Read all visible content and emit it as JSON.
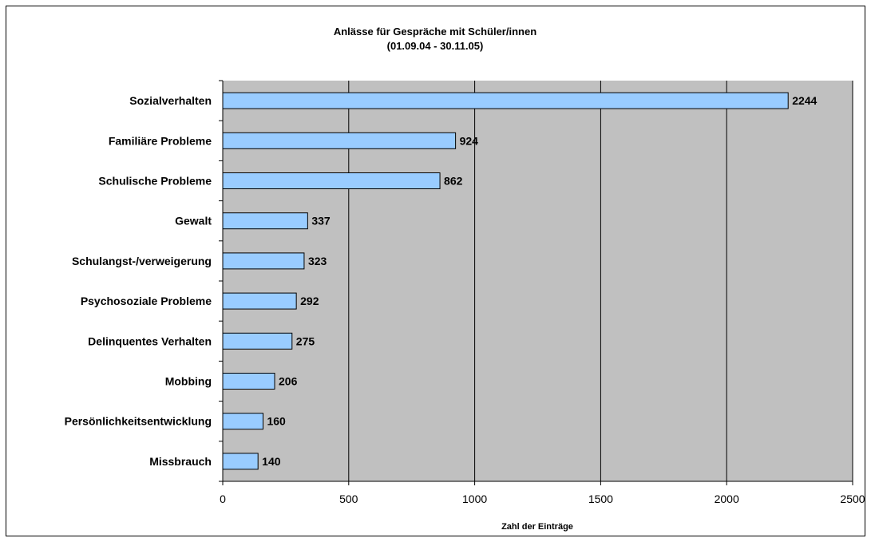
{
  "chart_data": {
    "type": "bar",
    "orientation": "horizontal",
    "title": "Anlässe für Gespräche mit Schüler/innen",
    "subtitle": "(01.09.04 - 30.11.05)",
    "categories": [
      "Sozialverhalten",
      "Familiäre Probleme",
      "Schulische Probleme",
      "Gewalt",
      "Schulangst-/verweigerung",
      "Psychosoziale Probleme",
      "Delinquentes Verhalten",
      "Mobbing",
      "Persönlichkeitsentwicklung",
      "Missbrauch"
    ],
    "values": [
      2244,
      924,
      862,
      337,
      323,
      292,
      275,
      206,
      160,
      140
    ],
    "value_labels": [
      "2244",
      "924",
      "862",
      "337",
      "323",
      "292",
      "275",
      "206",
      "160",
      "140"
    ],
    "xlabel": "Zahl der Einträge",
    "ylabel": "",
    "xlim": [
      0,
      2500
    ],
    "xticks": [
      0,
      500,
      1000,
      1500,
      2000,
      2500
    ],
    "xtick_labels": [
      "0",
      "500",
      "1000",
      "1500",
      "2000",
      "2500"
    ],
    "grid": true,
    "legend": "none",
    "colors": {
      "plot_background": "#c0c0c0",
      "bar_fill": "#99ccff",
      "bar_stroke": "#000000",
      "gridline": "#000000"
    }
  }
}
